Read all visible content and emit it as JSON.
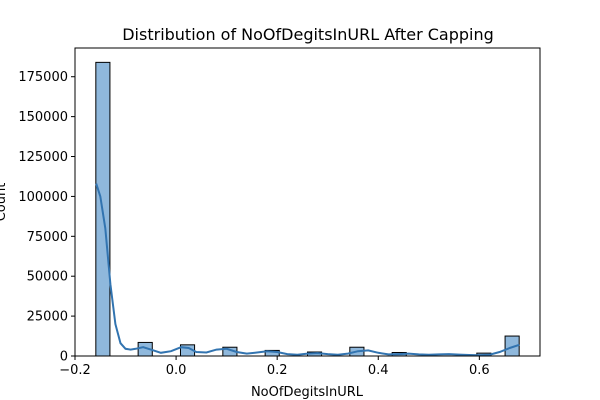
{
  "chart_data": {
    "type": "histogram",
    "title": "Distribution of NoOfDegitsInURL After Capping",
    "xlabel": "NoOfDegitsInURL",
    "ylabel": "Count",
    "xlim": [
      -0.2,
      0.72
    ],
    "ylim": [
      0,
      193000
    ],
    "x_ticks": [
      -0.2,
      0.0,
      0.2,
      0.4,
      0.6
    ],
    "x_tick_labels": [
      "−0.2",
      "0.0",
      "0.2",
      "0.4",
      "0.6"
    ],
    "y_ticks": [
      0,
      25000,
      50000,
      75000,
      100000,
      125000,
      150000,
      175000
    ],
    "y_tick_labels": [
      "0",
      "25000",
      "50000",
      "75000",
      "100000",
      "125000",
      "150000",
      "175000"
    ],
    "bin_edges": [
      -0.1588,
      -0.1309,
      -0.103,
      -0.0751,
      -0.0471,
      -0.0192,
      0.0087,
      0.0366,
      0.0645,
      0.0925,
      0.1204,
      0.1483,
      0.1762,
      0.2041,
      0.2321,
      0.26,
      0.2879,
      0.3158,
      0.3437,
      0.3717,
      0.3996,
      0.4275,
      0.4554,
      0.4833,
      0.5113,
      0.5392,
      0.5671,
      0.595,
      0.6229,
      0.6509,
      0.6788
    ],
    "counts": [
      184000,
      0,
      0,
      8500,
      0,
      0,
      7000,
      0,
      0,
      5500,
      0,
      0,
      3500,
      0,
      0,
      2500,
      0,
      0,
      5500,
      0,
      0,
      2200,
      0,
      0,
      0,
      0,
      0,
      1800,
      0,
      12500
    ],
    "kde": {
      "x": [
        -0.158,
        -0.15,
        -0.14,
        -0.13,
        -0.12,
        -0.11,
        -0.1,
        -0.09,
        -0.08,
        -0.065,
        -0.05,
        -0.03,
        -0.01,
        0.01,
        0.025,
        0.04,
        0.06,
        0.08,
        0.1,
        0.12,
        0.14,
        0.16,
        0.18,
        0.2,
        0.22,
        0.24,
        0.26,
        0.28,
        0.3,
        0.32,
        0.34,
        0.36,
        0.38,
        0.4,
        0.42,
        0.44,
        0.46,
        0.48,
        0.5,
        0.52,
        0.54,
        0.56,
        0.58,
        0.6,
        0.62,
        0.64,
        0.66,
        0.679
      ],
      "y": [
        108000,
        100000,
        80000,
        45000,
        20000,
        8000,
        4500,
        4000,
        4500,
        5500,
        4000,
        2000,
        3000,
        5500,
        5000,
        2500,
        2200,
        4000,
        4500,
        2500,
        1500,
        2200,
        3000,
        2500,
        1200,
        800,
        1500,
        1800,
        1200,
        800,
        1500,
        3000,
        3500,
        2000,
        1000,
        1200,
        1500,
        1000,
        800,
        1000,
        1200,
        900,
        600,
        500,
        800,
        2500,
        5000,
        7000
      ]
    },
    "bar_color": "#8fb8dc",
    "bar_edge_color": "#000000",
    "line_color": "#3274b0",
    "grid": false,
    "legend": "none"
  }
}
